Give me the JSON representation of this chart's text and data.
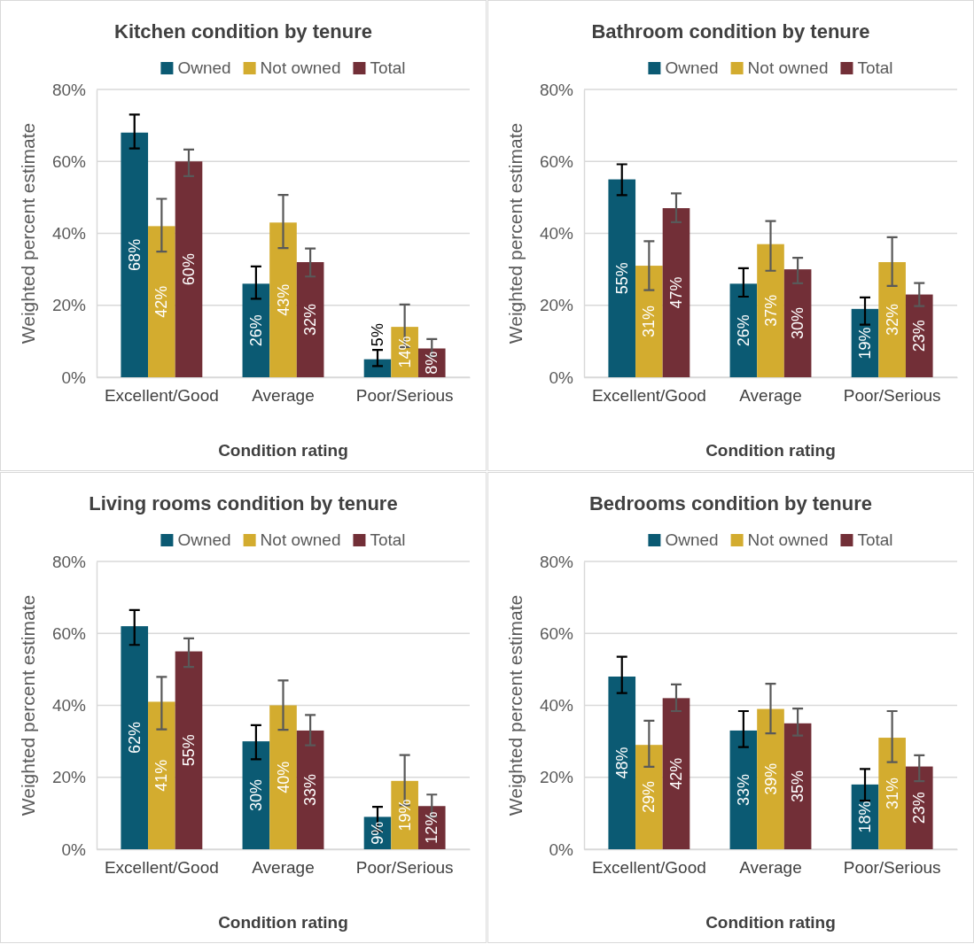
{
  "chart_data": [
    {
      "type": "bar",
      "title": "Kitchen condition by tenure",
      "xlabel": "Condition rating",
      "ylabel": "Weighted percent estimate",
      "categories": [
        "Excellent/Good",
        "Average",
        "Poor/Serious"
      ],
      "legend": "top",
      "grid": "y",
      "ylim": [
        0,
        80
      ],
      "yticks": [
        {
          "value": 0,
          "label": "0%"
        },
        {
          "value": 20,
          "label": "20%"
        },
        {
          "value": 40,
          "label": "40%"
        },
        {
          "value": 60,
          "label": "60%"
        },
        {
          "value": 80,
          "label": "80%"
        }
      ],
      "series": [
        {
          "name": "Owned",
          "color": "#0b5a73",
          "values": [
            68,
            26,
            5
          ],
          "errors": [
            [
              63.6,
              73
            ],
            [
              21.8,
              30.8
            ],
            [
              3.1,
              7.6
            ]
          ],
          "value_labels": [
            "68%",
            "26%",
            "5%"
          ]
        },
        {
          "name": "Not owned",
          "color": "#d3ac2f",
          "values": [
            42,
            43,
            14
          ],
          "errors": [
            [
              34.9,
              49.6
            ],
            [
              35.9,
              50.7
            ],
            [
              8.4,
              20.2
            ]
          ],
          "value_labels": [
            "42%",
            "43%",
            "14%"
          ]
        },
        {
          "name": "Total",
          "color": "#722f37",
          "values": [
            60,
            32,
            8
          ],
          "errors": [
            [
              55.9,
              63.3
            ],
            [
              28,
              35.8
            ],
            [
              5.8,
              10.6
            ]
          ],
          "value_labels": [
            "60%",
            "32%",
            "8%"
          ]
        }
      ]
    },
    {
      "type": "bar",
      "title": "Bathroom condition by tenure",
      "xlabel": "Condition rating",
      "ylabel": "Weighted percent estimate",
      "categories": [
        "Excellent/Good",
        "Average",
        "Poor/Serious"
      ],
      "legend": "top",
      "grid": "y",
      "ylim": [
        0,
        80
      ],
      "yticks": [
        {
          "value": 0,
          "label": "0%"
        },
        {
          "value": 20,
          "label": "20%"
        },
        {
          "value": 40,
          "label": "40%"
        },
        {
          "value": 60,
          "label": "60%"
        },
        {
          "value": 80,
          "label": "80%"
        }
      ],
      "series": [
        {
          "name": "Owned",
          "color": "#0b5a73",
          "values": [
            55,
            26,
            19
          ],
          "errors": [
            [
              50.6,
              59.2
            ],
            [
              22.4,
              30.3
            ],
            [
              14.6,
              22.2
            ]
          ],
          "value_labels": [
            "55%",
            "26%",
            "19%"
          ]
        },
        {
          "name": "Not owned",
          "color": "#d3ac2f",
          "values": [
            31,
            37,
            32
          ],
          "errors": [
            [
              24.2,
              37.8
            ],
            [
              29.6,
              43.4
            ],
            [
              25.4,
              38.9
            ]
          ],
          "value_labels": [
            "31%",
            "37%",
            "32%"
          ]
        },
        {
          "name": "Total",
          "color": "#722f37",
          "values": [
            47,
            30,
            23
          ],
          "errors": [
            [
              43.1,
              51.1
            ],
            [
              26.1,
              33.2
            ],
            [
              19.8,
              26.2
            ]
          ],
          "value_labels": [
            "47%",
            "30%",
            "23%"
          ]
        }
      ]
    },
    {
      "type": "bar",
      "title": "Living rooms condition by tenure",
      "xlabel": "Condition rating",
      "ylabel": "Weighted percent estimate",
      "categories": [
        "Excellent/Good",
        "Average",
        "Poor/Serious"
      ],
      "legend": "top",
      "grid": "y",
      "ylim": [
        0,
        80
      ],
      "yticks": [
        {
          "value": 0,
          "label": "0%"
        },
        {
          "value": 20,
          "label": "20%"
        },
        {
          "value": 40,
          "label": "40%"
        },
        {
          "value": 60,
          "label": "60%"
        },
        {
          "value": 80,
          "label": "80%"
        }
      ],
      "series": [
        {
          "name": "Owned",
          "color": "#0b5a73",
          "values": [
            62,
            30,
            9
          ],
          "errors": [
            [
              56.8,
              66.5
            ],
            [
              25,
              34.5
            ],
            [
              5,
              11.8
            ]
          ],
          "value_labels": [
            "62%",
            "30%",
            "9%"
          ]
        },
        {
          "name": "Not owned",
          "color": "#d3ac2f",
          "values": [
            41,
            40,
            19
          ],
          "errors": [
            [
              33.3,
              47.9
            ],
            [
              33.2,
              46.9
            ],
            [
              12.2,
              26.2
            ]
          ],
          "value_labels": [
            "41%",
            "40%",
            "19%"
          ]
        },
        {
          "name": "Total",
          "color": "#722f37",
          "values": [
            55,
            33,
            12
          ],
          "errors": [
            [
              50.7,
              58.6
            ],
            [
              28.9,
              37.3
            ],
            [
              9,
              15.2
            ]
          ],
          "value_labels": [
            "55%",
            "33%",
            "12%"
          ]
        }
      ]
    },
    {
      "type": "bar",
      "title": "Bedrooms condition by tenure",
      "xlabel": "Condition rating",
      "ylabel": "Weighted percent estimate",
      "categories": [
        "Excellent/Good",
        "Average",
        "Poor/Serious"
      ],
      "legend": "top",
      "grid": "y",
      "ylim": [
        0,
        80
      ],
      "yticks": [
        {
          "value": 0,
          "label": "0%"
        },
        {
          "value": 20,
          "label": "20%"
        },
        {
          "value": 40,
          "label": "40%"
        },
        {
          "value": 60,
          "label": "60%"
        },
        {
          "value": 80,
          "label": "80%"
        }
      ],
      "series": [
        {
          "name": "Owned",
          "color": "#0b5a73",
          "values": [
            48,
            33,
            18
          ],
          "errors": [
            [
              43.4,
              53.5
            ],
            [
              28.4,
              38.4
            ],
            [
              13.5,
              22.3
            ]
          ],
          "value_labels": [
            "48%",
            "33%",
            "18%"
          ]
        },
        {
          "name": "Not owned",
          "color": "#d3ac2f",
          "values": [
            29,
            39,
            31
          ],
          "errors": [
            [
              22.9,
              35.7
            ],
            [
              32.2,
              46
            ],
            [
              24.2,
              38.4
            ]
          ],
          "value_labels": [
            "29%",
            "39%",
            "31%"
          ]
        },
        {
          "name": "Total",
          "color": "#722f37",
          "values": [
            42,
            35,
            23
          ],
          "errors": [
            [
              38.4,
              45.8
            ],
            [
              31.6,
              39.1
            ],
            [
              18.9,
              26.1
            ]
          ],
          "value_labels": [
            "42%",
            "35%",
            "23%"
          ]
        }
      ]
    }
  ]
}
